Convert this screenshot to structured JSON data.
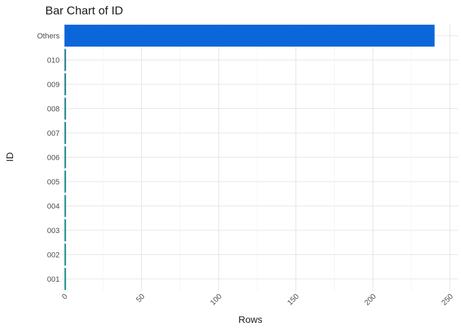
{
  "chart_data": {
    "type": "bar",
    "orientation": "horizontal",
    "title": "Bar Chart of ID",
    "xlabel": "Rows",
    "ylabel": "ID",
    "categories": [
      "001",
      "002",
      "003",
      "004",
      "005",
      "006",
      "007",
      "008",
      "009",
      "010",
      "Others"
    ],
    "values": [
      1,
      1,
      1,
      1,
      1,
      1,
      1,
      1,
      1,
      1,
      240
    ],
    "xlim": [
      0,
      250
    ],
    "x_ticks": [
      0,
      50,
      100,
      150,
      200,
      250
    ],
    "grid": true,
    "colors": [
      "#21918c",
      "#21918c",
      "#21918c",
      "#21918c",
      "#21908d",
      "#228c8d",
      "#23898e",
      "#24868e",
      "#26838e",
      "#277f8e",
      "#0b67d9"
    ]
  }
}
